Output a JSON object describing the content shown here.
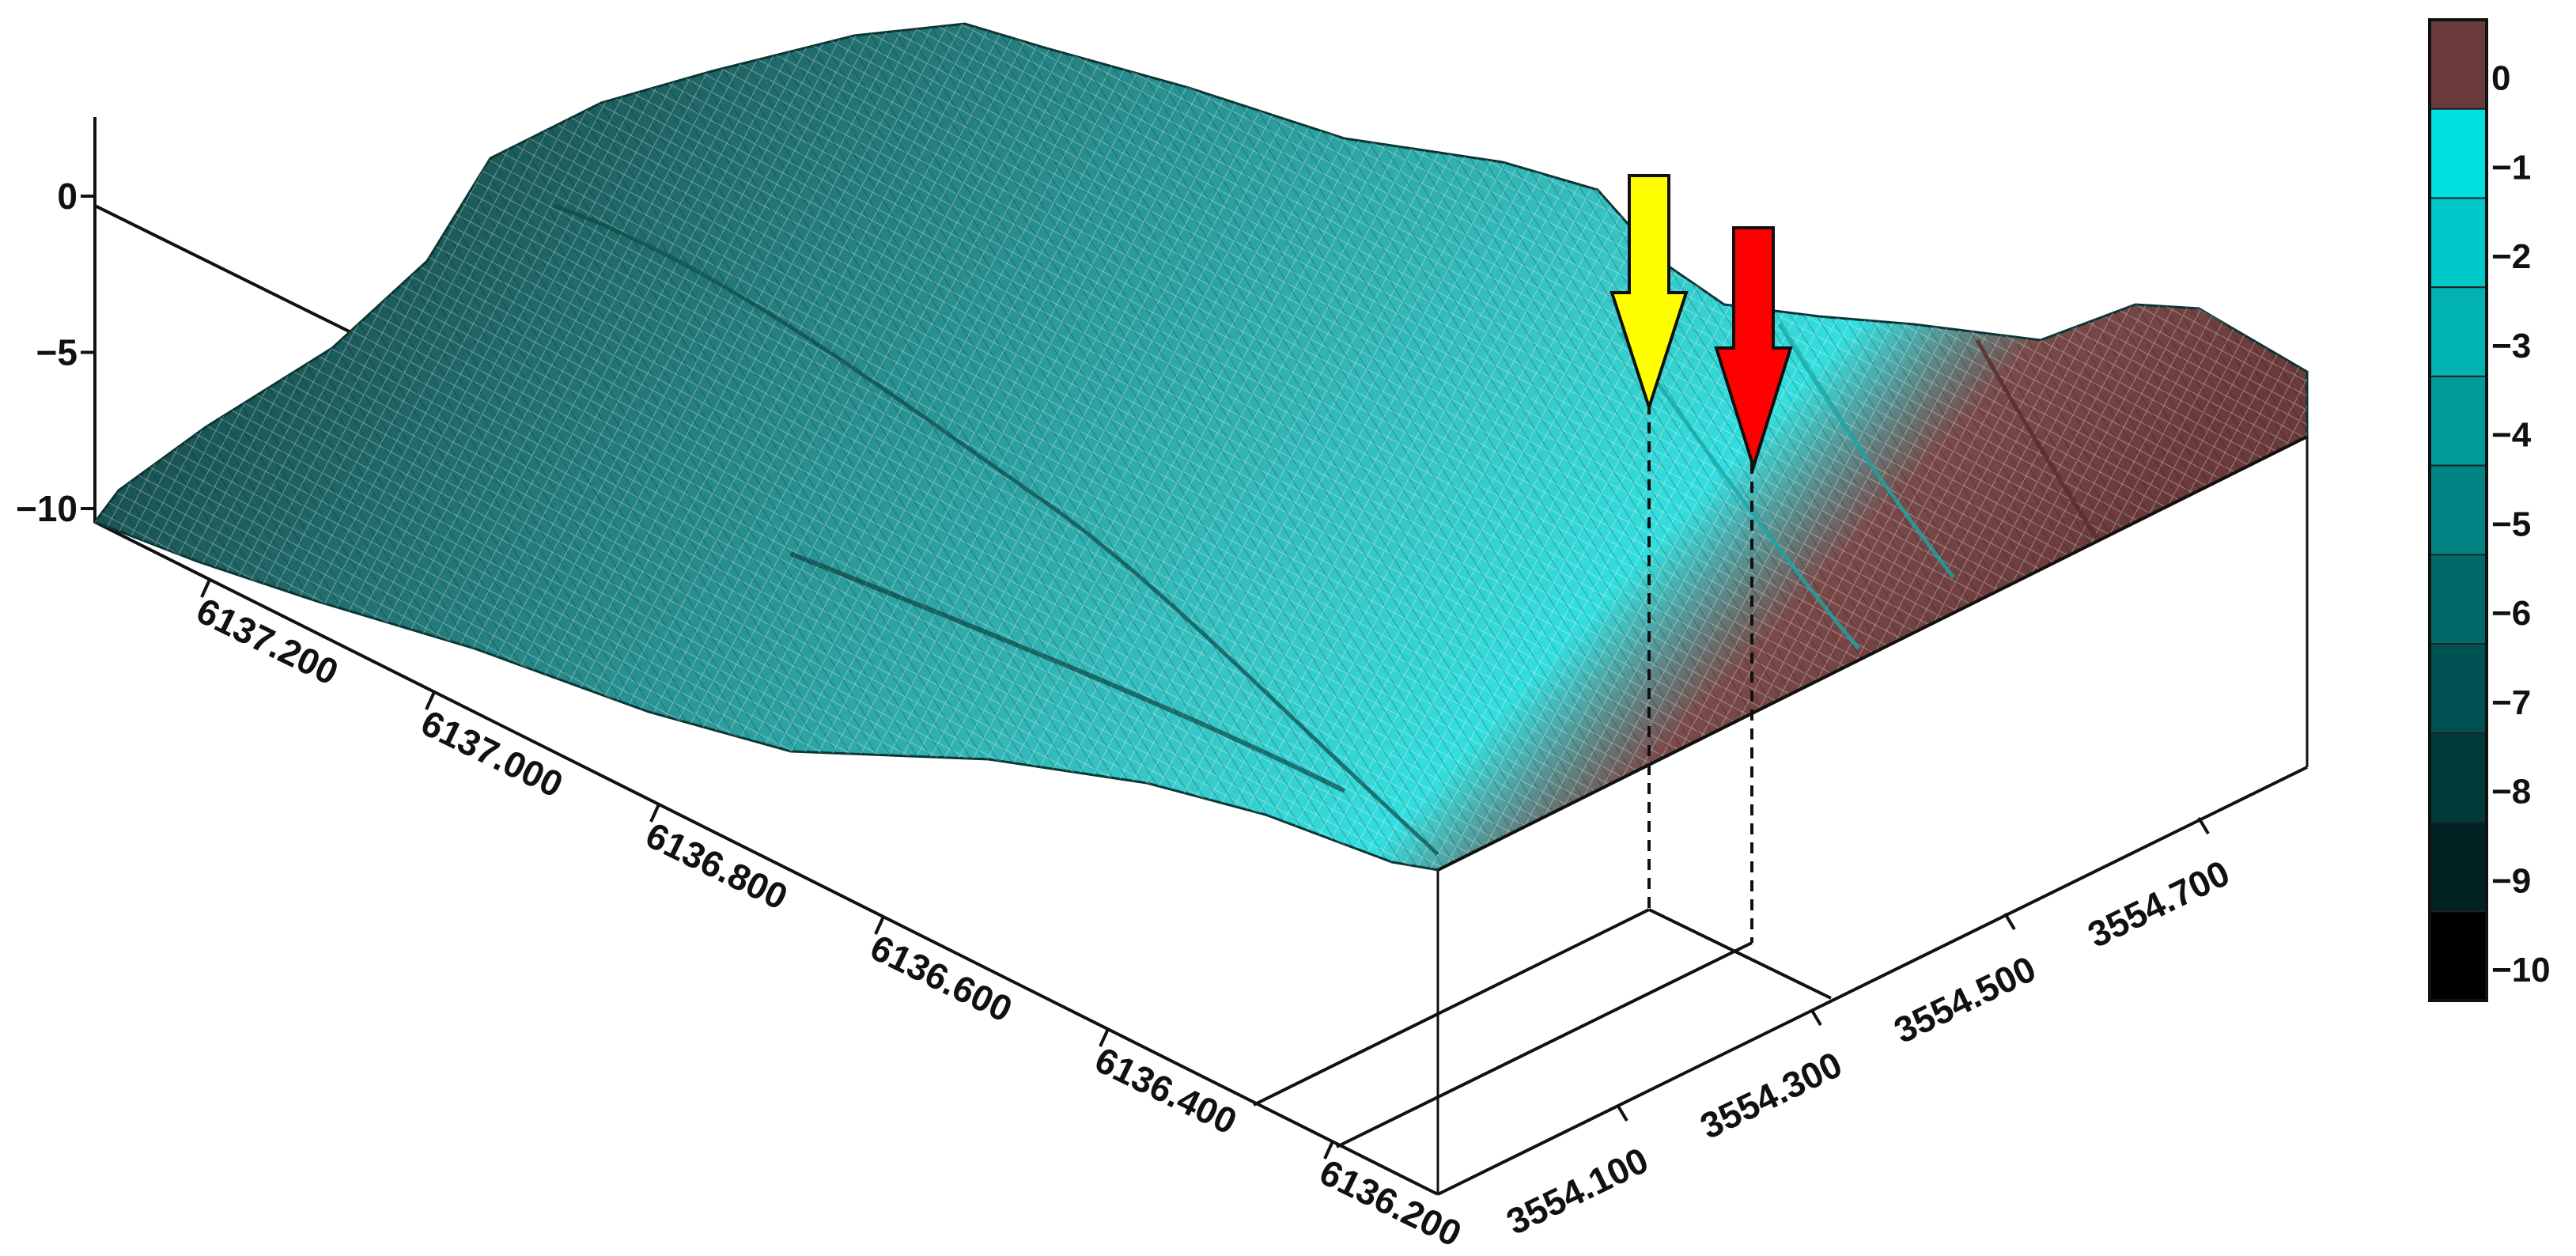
{
  "chart_data": {
    "type": "surface-wireframe",
    "title": "",
    "xlabel": "",
    "ylabel": "",
    "zlabel": "",
    "y_axis": {
      "ticks": [
        "6136.200",
        "6136.400",
        "6136.600",
        "6136.800",
        "6137.000",
        "6137.200"
      ],
      "range": [
        6136.2,
        6137.3
      ]
    },
    "x_axis": {
      "ticks": [
        "3554.100",
        "3554.300",
        "3554.500",
        "3554.700"
      ],
      "range": [
        3554.0,
        3554.8
      ]
    },
    "z_axis": {
      "ticks": [
        "0",
        "−5",
        "−10"
      ],
      "values": [
        0,
        -5,
        -10
      ],
      "range": [
        -10,
        2
      ]
    },
    "colorbar": {
      "labels": [
        "0",
        "−1",
        "−2",
        "−3",
        "−4",
        "−5",
        "−6",
        "−7",
        "−8",
        "−9",
        "−10"
      ],
      "colors": [
        "#6b3a3a",
        "#00e0e0",
        "#00c8c8",
        "#00b2b2",
        "#009c9c",
        "#008484",
        "#006a6a",
        "#005252",
        "#003a3a",
        "#002222",
        "#000000"
      ]
    },
    "markers": [
      {
        "name": "yellow-arrow",
        "color": "#ffff00",
        "x": 3554.25
      },
      {
        "name": "red-arrow",
        "color": "#ff0000",
        "x": 3554.32
      }
    ],
    "surface_profile_x": [
      3554.0,
      3554.1,
      3554.2,
      3554.3,
      3554.4,
      3554.5,
      3554.6,
      3554.7,
      3554.8
    ],
    "surface_profile_z": [
      -8.5,
      -6.0,
      -4.5,
      -3.0,
      -2.0,
      -1.5,
      -0.5,
      0.8,
      0.5
    ]
  }
}
